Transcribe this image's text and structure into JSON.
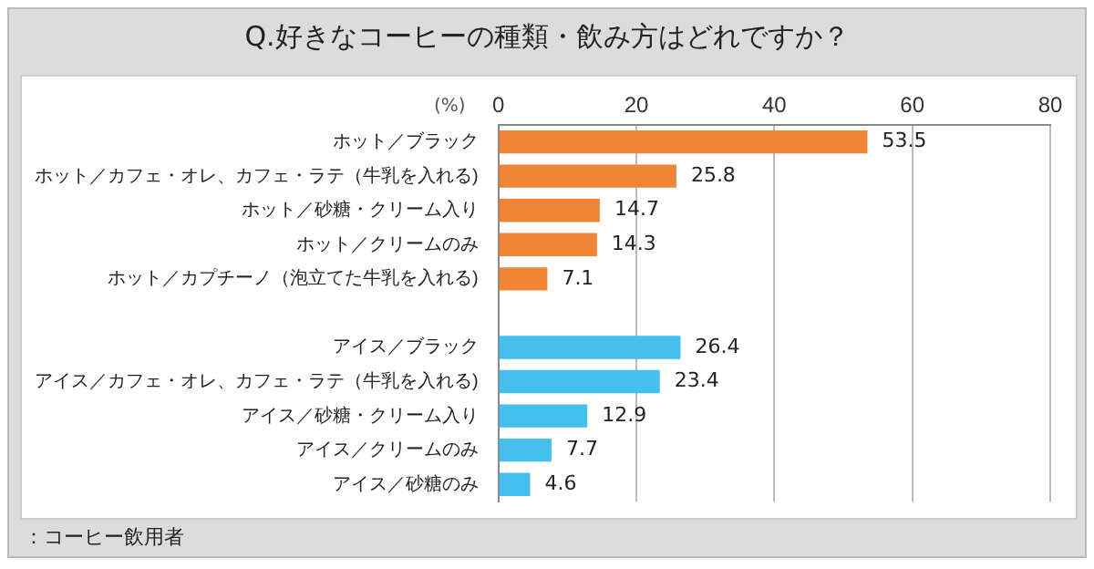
{
  "chart_data": {
    "type": "bar",
    "orientation": "horizontal",
    "title": "Q.好きなコーヒーの種類・飲み方はどれですか？",
    "xlabel": "(%)",
    "categories": [
      "ホット／ブラック",
      "ホット／カフェ・オレ、カフェ・ラテ（牛乳を入れる)",
      "ホット／砂糖・クリーム入り",
      "ホット／クリームのみ",
      "ホット／カプチーノ（泡立てた牛乳を入れる)",
      null,
      "アイス／ブラック",
      "アイス／カフェ・オレ、カフェ・ラテ（牛乳を入れる)",
      "アイス／砂糖・クリーム入り",
      "アイス／クリームのみ",
      "アイス／砂糖のみ"
    ],
    "values": [
      53.5,
      25.8,
      14.7,
      14.3,
      7.1,
      null,
      26.4,
      23.4,
      12.9,
      7.7,
      4.6
    ],
    "colors": [
      "#f08536",
      "#f08536",
      "#f08536",
      "#f08536",
      "#f08536",
      "#f08536",
      "#45c0ee",
      "#45c0ee",
      "#45c0ee",
      "#45c0ee",
      "#45c0ee"
    ],
    "xlim": [
      0,
      80
    ],
    "xticks": [
      0,
      20,
      40,
      60,
      80
    ],
    "grid": "x",
    "data_labels": true,
    "annotations": [
      "：コーヒー飲用者"
    ]
  }
}
